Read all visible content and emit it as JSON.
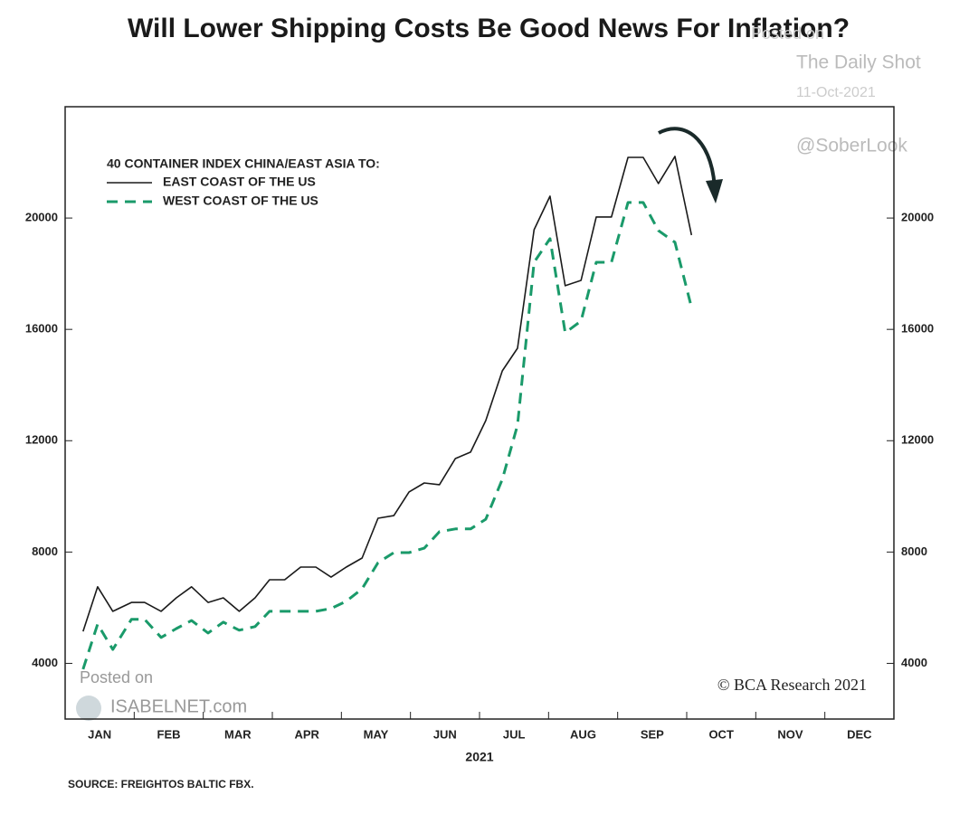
{
  "chart_data": {
    "type": "line",
    "title": "Will Lower Shipping Costs Be Good News For Inflation?",
    "legend_title": "40 CONTAINER INDEX CHINA/EAST ASIA TO:",
    "xlabel": "2021",
    "source": "SOURCE: FREIGHTOS BALTIC FBX.",
    "annotations": [
      "Posted on",
      "The Daily Shot",
      "11-Oct-2021",
      "@SoberLook",
      "Posted on",
      "ISABELNET.com",
      "© BCA Research 2021"
    ],
    "categories": [
      "JAN",
      "FEB",
      "MAR",
      "APR",
      "MAY",
      "JUN",
      "JUL",
      "AUG",
      "SEP",
      "OCT",
      "NOV",
      "DEC"
    ],
    "xlim": [
      0,
      12
    ],
    "x": [
      0.26,
      0.47,
      0.69,
      0.96,
      1.15,
      1.39,
      1.61,
      1.83,
      2.07,
      2.29,
      2.52,
      2.75,
      2.96,
      3.18,
      3.41,
      3.63,
      3.85,
      4.07,
      4.3,
      4.53,
      4.76,
      4.98,
      5.2,
      5.42,
      5.65,
      5.87,
      6.09,
      6.33,
      6.55,
      6.79,
      7.02,
      7.24,
      7.47,
      7.69,
      7.91,
      8.15,
      8.37,
      8.59,
      8.83,
      9.07
    ],
    "ylim": [
      2000,
      24000
    ],
    "yticks": [
      4000,
      8000,
      12000,
      16000,
      20000
    ],
    "series": [
      {
        "name": "EAST COAST OF THE US",
        "color": "#1a1a1a",
        "dashed": false,
        "values": [
          5150,
          6750,
          5870,
          6190,
          6190,
          5870,
          6355,
          6750,
          6190,
          6355,
          5870,
          6355,
          7005,
          7005,
          7460,
          7460,
          7100,
          7460,
          7785,
          9215,
          9310,
          10160,
          10480,
          10420,
          11360,
          11590,
          12725,
          14510,
          15325,
          19580,
          20785,
          17570,
          17760,
          20040,
          20040,
          22180,
          22180,
          21240,
          22215,
          19390
        ]
      },
      {
        "name": "WEST COAST OF THE US",
        "color": "#1a9a6a",
        "dashed": true,
        "values": [
          3790,
          5410,
          4500,
          5580,
          5580,
          4930,
          5250,
          5540,
          5090,
          5480,
          5190,
          5320,
          5870,
          5870,
          5870,
          5870,
          5970,
          6230,
          6680,
          7620,
          7980,
          7980,
          8140,
          8730,
          8830,
          8830,
          9180,
          10610,
          12560,
          18410,
          19260,
          15880,
          16300,
          18410,
          18410,
          20560,
          20560,
          19550,
          19130,
          16790
        ]
      }
    ]
  }
}
